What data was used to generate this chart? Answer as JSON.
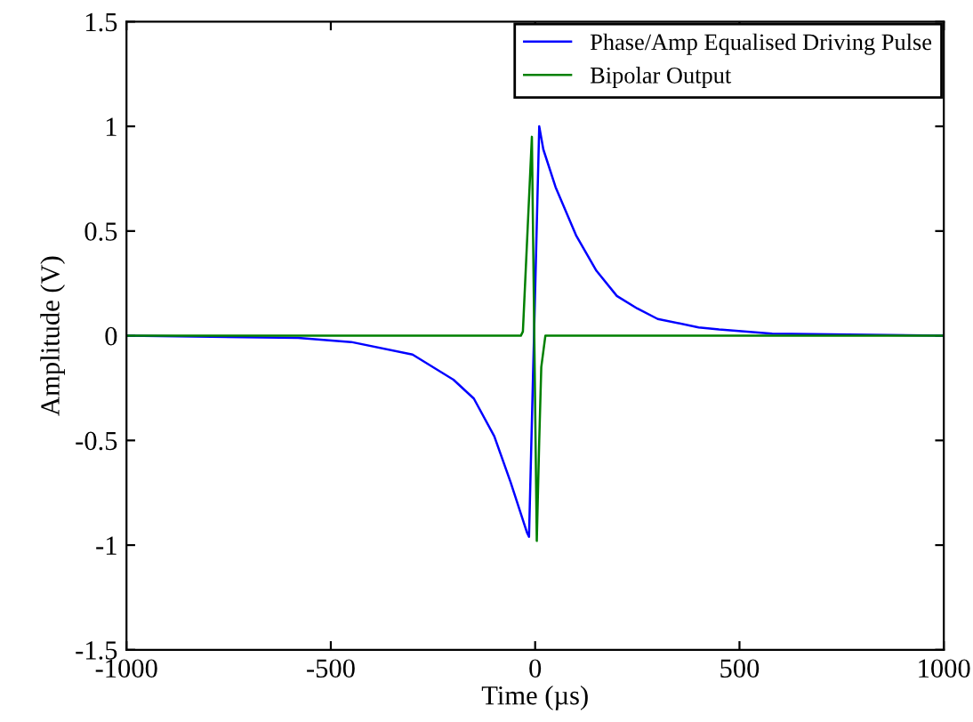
{
  "chart_data": {
    "type": "line",
    "xlabel": "Time (µs)",
    "ylabel": "Amplitude (V)",
    "xlim": [
      -1000,
      1000
    ],
    "ylim": [
      -1.5,
      1.5
    ],
    "xticks": [
      -1000,
      -500,
      0,
      500,
      1000
    ],
    "yticks": [
      -1.5,
      -1,
      -0.5,
      0,
      0.5,
      1,
      1.5
    ],
    "grid": false,
    "legend": "top right",
    "marker": "none",
    "line_style": "solid",
    "series": [
      {
        "name": "Phase/Amp Equalised Driving Pulse",
        "color": "#0000ff",
        "x": [
          -1000,
          -580,
          -450,
          -300,
          -200,
          -150,
          -100,
          -60,
          -40,
          -20,
          -15,
          10,
          20,
          50,
          100,
          150,
          200,
          250,
          300,
          400,
          450,
          580,
          1000
        ],
        "values": [
          0,
          -0.01,
          -0.03,
          -0.09,
          -0.21,
          -0.3,
          -0.48,
          -0.7,
          -0.82,
          -0.94,
          -0.96,
          1.0,
          0.89,
          0.71,
          0.48,
          0.31,
          0.19,
          0.13,
          0.08,
          0.04,
          0.03,
          0.01,
          0
        ]
      },
      {
        "name": "Bipolar Output",
        "color": "#008000",
        "x": [
          -1000,
          -35,
          -30,
          -8,
          4,
          10,
          15,
          25,
          1000
        ],
        "values": [
          0,
          0,
          0.02,
          0.95,
          -0.98,
          -0.5,
          -0.15,
          0,
          0
        ]
      }
    ]
  }
}
